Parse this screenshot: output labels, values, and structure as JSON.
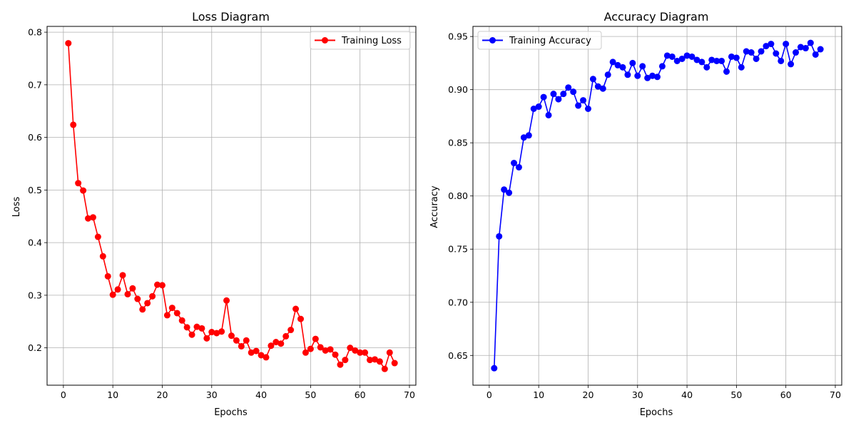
{
  "chart_data": [
    {
      "type": "line",
      "title": "Loss Diagram",
      "xlabel": "Epochs",
      "ylabel": "Loss",
      "xlim": [
        -3.3,
        71.3
      ],
      "ylim": [
        0.129,
        0.811
      ],
      "xticks": [
        0,
        10,
        20,
        30,
        40,
        50,
        60,
        70
      ],
      "yticks": [
        0.2,
        0.3,
        0.4,
        0.5,
        0.6,
        0.7,
        0.8
      ],
      "grid": true,
      "legend_position": "upper-right",
      "series": [
        {
          "name": "Training Loss",
          "color": "#ff0000",
          "marker": "circle",
          "x": [
            1,
            2,
            3,
            4,
            5,
            6,
            7,
            8,
            9,
            10,
            11,
            12,
            13,
            14,
            15,
            16,
            17,
            18,
            19,
            20,
            21,
            22,
            23,
            24,
            25,
            26,
            27,
            28,
            29,
            30,
            31,
            32,
            33,
            34,
            35,
            36,
            37,
            38,
            39,
            40,
            41,
            42,
            43,
            44,
            45,
            46,
            47,
            48,
            49,
            50,
            51,
            52,
            53,
            54,
            55,
            56,
            57,
            58,
            59,
            60,
            61,
            62,
            63,
            64,
            65,
            66,
            67
          ],
          "values": [
            0.779,
            0.624,
            0.513,
            0.499,
            0.446,
            0.448,
            0.411,
            0.374,
            0.336,
            0.301,
            0.311,
            0.338,
            0.302,
            0.313,
            0.293,
            0.273,
            0.285,
            0.298,
            0.32,
            0.319,
            0.262,
            0.276,
            0.266,
            0.252,
            0.239,
            0.225,
            0.24,
            0.237,
            0.218,
            0.23,
            0.228,
            0.231,
            0.29,
            0.223,
            0.214,
            0.203,
            0.214,
            0.191,
            0.194,
            0.186,
            0.182,
            0.204,
            0.211,
            0.208,
            0.222,
            0.234,
            0.274,
            0.255,
            0.191,
            0.198,
            0.217,
            0.201,
            0.195,
            0.197,
            0.187,
            0.168,
            0.177,
            0.2,
            0.195,
            0.191,
            0.191,
            0.177,
            0.178,
            0.174,
            0.16,
            0.191,
            0.171
          ]
        }
      ]
    },
    {
      "type": "line",
      "title": "Accuracy Diagram",
      "xlabel": "Epochs",
      "ylabel": "Accuracy",
      "xlim": [
        -3.3,
        71.3
      ],
      "ylim": [
        0.622,
        0.9595
      ],
      "xticks": [
        0,
        10,
        20,
        30,
        40,
        50,
        60,
        70
      ],
      "yticks": [
        0.65,
        0.7,
        0.75,
        0.8,
        0.85,
        0.9,
        0.95
      ],
      "grid": true,
      "legend_position": "upper-left",
      "series": [
        {
          "name": "Training Accuracy",
          "color": "#0000ff",
          "marker": "circle",
          "x": [
            1,
            2,
            3,
            4,
            5,
            6,
            7,
            8,
            9,
            10,
            11,
            12,
            13,
            14,
            15,
            16,
            17,
            18,
            19,
            20,
            21,
            22,
            23,
            24,
            25,
            26,
            27,
            28,
            29,
            30,
            31,
            32,
            33,
            34,
            35,
            36,
            37,
            38,
            39,
            40,
            41,
            42,
            43,
            44,
            45,
            46,
            47,
            48,
            49,
            50,
            51,
            52,
            53,
            54,
            55,
            56,
            57,
            58,
            59,
            60,
            61,
            62,
            63,
            64,
            65,
            66,
            67
          ],
          "values": [
            0.638,
            0.762,
            0.806,
            0.803,
            0.831,
            0.827,
            0.855,
            0.857,
            0.882,
            0.884,
            0.893,
            0.876,
            0.896,
            0.891,
            0.896,
            0.902,
            0.898,
            0.885,
            0.89,
            0.882,
            0.91,
            0.903,
            0.901,
            0.914,
            0.926,
            0.923,
            0.921,
            0.914,
            0.925,
            0.913,
            0.922,
            0.911,
            0.913,
            0.912,
            0.922,
            0.932,
            0.931,
            0.927,
            0.929,
            0.932,
            0.931,
            0.928,
            0.926,
            0.921,
            0.928,
            0.927,
            0.927,
            0.917,
            0.931,
            0.93,
            0.921,
            0.936,
            0.935,
            0.929,
            0.936,
            0.941,
            0.943,
            0.934,
            0.927,
            0.943,
            0.924,
            0.935,
            0.94,
            0.939,
            0.944,
            0.933,
            0.938
          ]
        }
      ]
    }
  ]
}
